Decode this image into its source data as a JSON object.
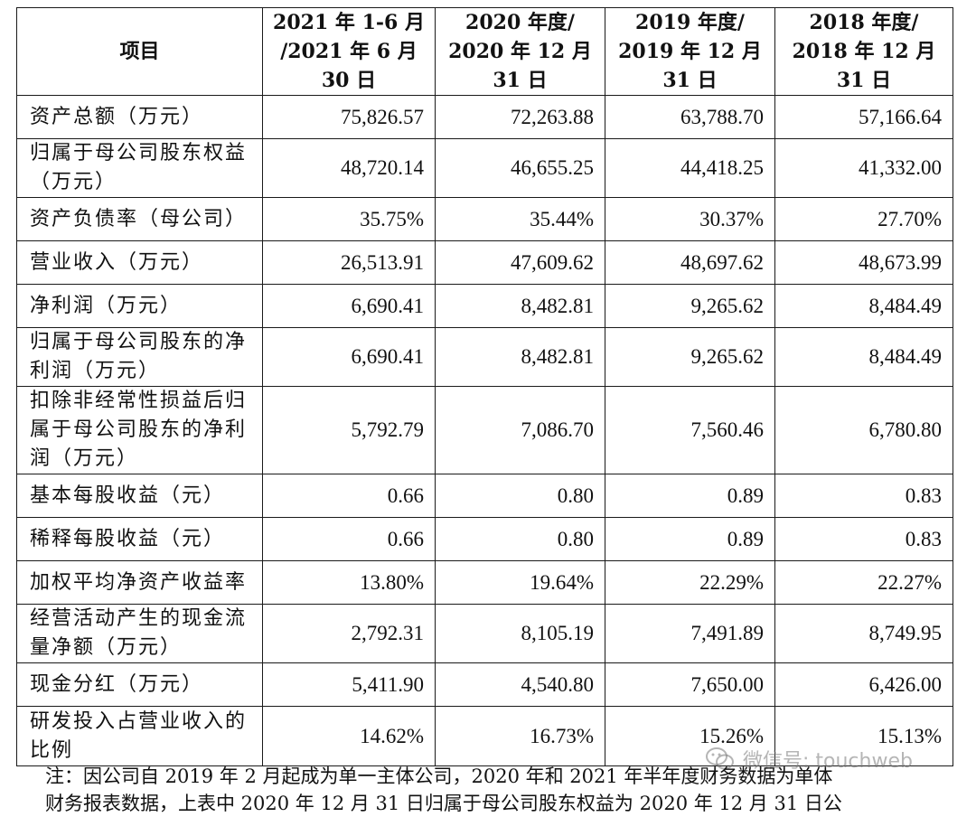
{
  "table": {
    "header": {
      "item": "项目",
      "periods": [
        [
          "2021 年 1-6 月",
          "/2021 年 6 月",
          "30 日"
        ],
        [
          "2020 年度/",
          "2020 年 12 月",
          "31 日"
        ],
        [
          "2019 年度/",
          "2019 年 12 月",
          "31 日"
        ],
        [
          "2018 年度/",
          "2018 年 12 月",
          "31 日"
        ]
      ]
    },
    "rows": [
      {
        "label": [
          "资产总额（万元）"
        ],
        "values": [
          "75,826.57",
          "72,263.88",
          "63,788.70",
          "57,166.64"
        ]
      },
      {
        "label": [
          "归属于母公司股东权益",
          "（万元）"
        ],
        "values": [
          "48,720.14",
          "46,655.25",
          "44,418.25",
          "41,332.00"
        ]
      },
      {
        "label": [
          "资产负债率（母公司）"
        ],
        "values": [
          "35.75%",
          "35.44%",
          "30.37%",
          "27.70%"
        ]
      },
      {
        "label": [
          "营业收入（万元）"
        ],
        "values": [
          "26,513.91",
          "47,609.62",
          "48,697.62",
          "48,673.99"
        ]
      },
      {
        "label": [
          "净利润（万元）"
        ],
        "values": [
          "6,690.41",
          "8,482.81",
          "9,265.62",
          "8,484.49"
        ]
      },
      {
        "label": [
          "归属于母公司股东的净",
          "利润（万元）"
        ],
        "values": [
          "6,690.41",
          "8,482.81",
          "9,265.62",
          "8,484.49"
        ]
      },
      {
        "label": [
          "扣除非经常性损益后归",
          "属于母公司股东的净利",
          "润（万元）"
        ],
        "values": [
          "5,792.79",
          "7,086.70",
          "7,560.46",
          "6,780.80"
        ]
      },
      {
        "label": [
          "基本每股收益（元）"
        ],
        "values": [
          "0.66",
          "0.80",
          "0.89",
          "0.83"
        ]
      },
      {
        "label": [
          "稀释每股收益（元）"
        ],
        "values": [
          "0.66",
          "0.80",
          "0.89",
          "0.83"
        ]
      },
      {
        "label": [
          "加权平均净资产收益率"
        ],
        "values": [
          "13.80%",
          "19.64%",
          "22.29%",
          "22.27%"
        ]
      },
      {
        "label": [
          "经营活动产生的现金流",
          "量净额（万元）"
        ],
        "values": [
          "2,792.31",
          "8,105.19",
          "7,491.89",
          "8,749.95"
        ]
      },
      {
        "label": [
          "现金分红（万元）"
        ],
        "values": [
          "5,411.90",
          "4,540.80",
          "7,650.00",
          "6,426.00"
        ]
      },
      {
        "label": [
          "研发投入占营业收入的",
          "比例"
        ],
        "values": [
          "14.62%",
          "16.73%",
          "15.26%",
          "15.13%"
        ]
      }
    ],
    "row_heights": []
  },
  "note": {
    "lines": [
      "注：因公司自 2019 年 2 月起成为单一主体公司，2020 年和 2021 年半年度财务数据为单体",
      "财务报表数据，上表中 2020 年 12 月 31 日归属于母公司股东权益为 2020 年 12 月 31 日公"
    ]
  },
  "watermark": {
    "text": "微信号: touchweb",
    "icon": "wechat-icon"
  }
}
